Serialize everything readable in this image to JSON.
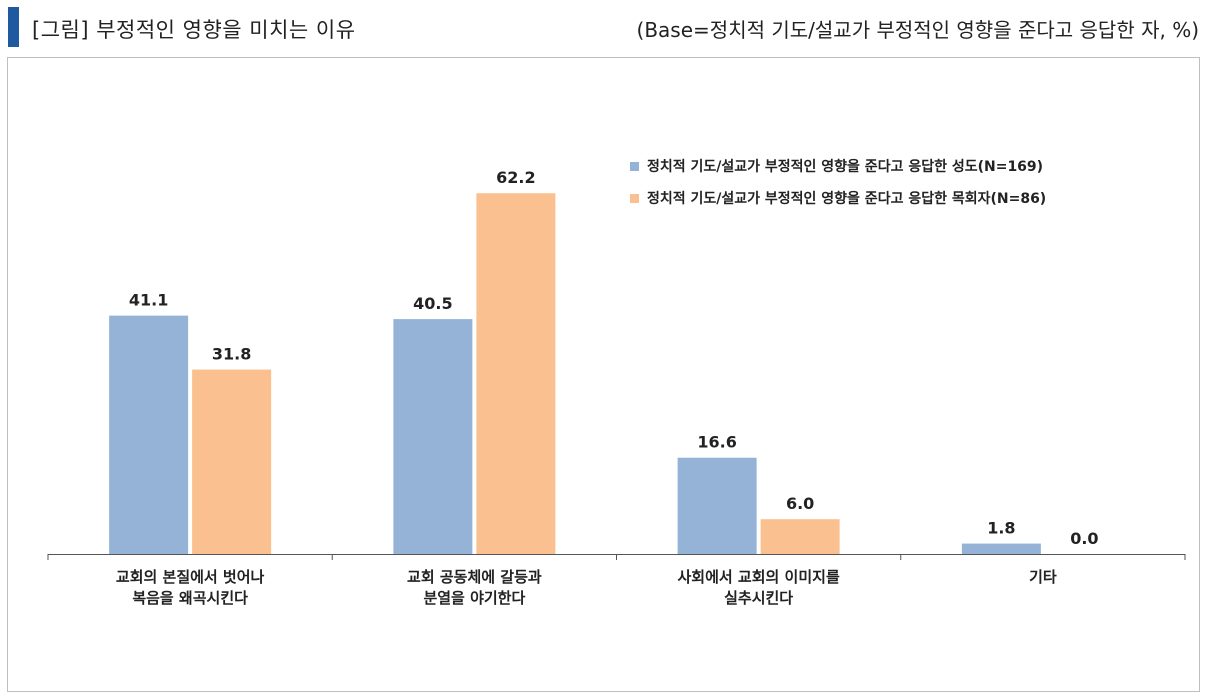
{
  "header": {
    "title": "[그림] 부정적인 영향을 미치는 이유",
    "base_note": "(Base=정치적 기도/설교가 부정적인 영향을 준다고 응답한 자, %)"
  },
  "chart_data": {
    "type": "bar",
    "categories": [
      "교회의 본질에서 벗어나\n복음을 왜곡시킨다",
      "교회 공동체에 갈등과\n분열을 야기한다",
      "사회에서 교회의 이미지를\n실추시킨다",
      "기타"
    ],
    "series": [
      {
        "name": "정치적 기도/설교가 부정적인 영향을 준다고 응답한 성도(N=169)",
        "color": "#95b3d7",
        "values": [
          41.1,
          40.5,
          16.6,
          1.8
        ]
      },
      {
        "name": "정치적 기도/설교가 부정적인 영향을 준다고 응답한 목회자(N=86)",
        "color": "#fac090",
        "values": [
          31.8,
          62.2,
          6.0,
          0.0
        ]
      }
    ],
    "data_labels": [
      [
        "41.1",
        "40.5",
        "16.6",
        "1.8"
      ],
      [
        "31.8",
        "62.2",
        "6.0",
        "0.0"
      ]
    ],
    "ylim": [
      0,
      70
    ],
    "legend_position": "top-right",
    "grid": false
  }
}
